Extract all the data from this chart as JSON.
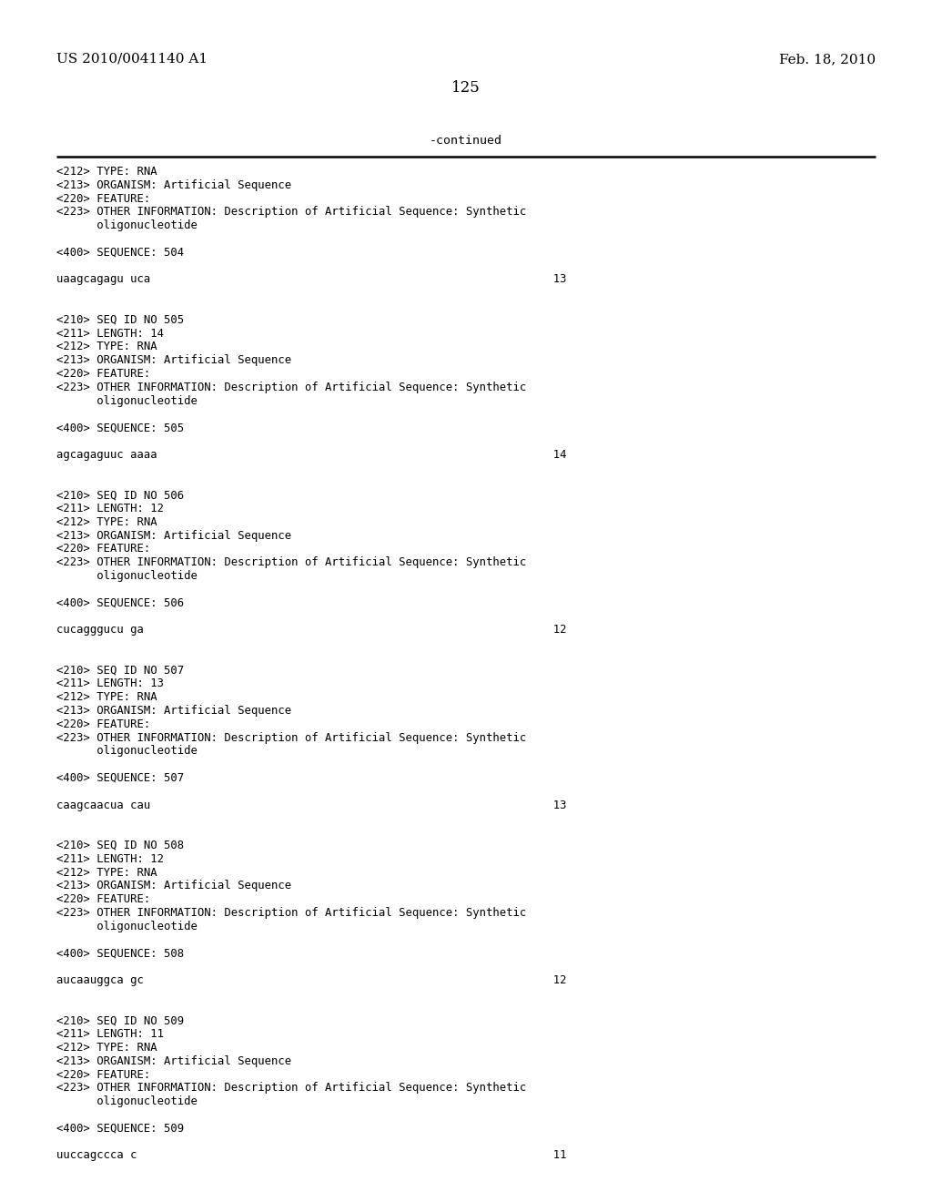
{
  "bg_color": "#ffffff",
  "header_left": "US 2010/0041140 A1",
  "header_right": "Feb. 18, 2010",
  "page_number": "125",
  "continued_label": "-continued",
  "lines": [
    "<212> TYPE: RNA",
    "<213> ORGANISM: Artificial Sequence",
    "<220> FEATURE:",
    "<223> OTHER INFORMATION: Description of Artificial Sequence: Synthetic",
    "      oligonucleotide",
    "",
    "<400> SEQUENCE: 504",
    "",
    "uaagcagagu uca                                                            13",
    "",
    "",
    "<210> SEQ ID NO 505",
    "<211> LENGTH: 14",
    "<212> TYPE: RNA",
    "<213> ORGANISM: Artificial Sequence",
    "<220> FEATURE:",
    "<223> OTHER INFORMATION: Description of Artificial Sequence: Synthetic",
    "      oligonucleotide",
    "",
    "<400> SEQUENCE: 505",
    "",
    "agcagaguuc aaaa                                                           14",
    "",
    "",
    "<210> SEQ ID NO 506",
    "<211> LENGTH: 12",
    "<212> TYPE: RNA",
    "<213> ORGANISM: Artificial Sequence",
    "<220> FEATURE:",
    "<223> OTHER INFORMATION: Description of Artificial Sequence: Synthetic",
    "      oligonucleotide",
    "",
    "<400> SEQUENCE: 506",
    "",
    "cucagggucu ga                                                             12",
    "",
    "",
    "<210> SEQ ID NO 507",
    "<211> LENGTH: 13",
    "<212> TYPE: RNA",
    "<213> ORGANISM: Artificial Sequence",
    "<220> FEATURE:",
    "<223> OTHER INFORMATION: Description of Artificial Sequence: Synthetic",
    "      oligonucleotide",
    "",
    "<400> SEQUENCE: 507",
    "",
    "caagcaacua cau                                                            13",
    "",
    "",
    "<210> SEQ ID NO 508",
    "<211> LENGTH: 12",
    "<212> TYPE: RNA",
    "<213> ORGANISM: Artificial Sequence",
    "<220> FEATURE:",
    "<223> OTHER INFORMATION: Description of Artificial Sequence: Synthetic",
    "      oligonucleotide",
    "",
    "<400> SEQUENCE: 508",
    "",
    "aucaauggca gc                                                             12",
    "",
    "",
    "<210> SEQ ID NO 509",
    "<211> LENGTH: 11",
    "<212> TYPE: RNA",
    "<213> ORGANISM: Artificial Sequence",
    "<220> FEATURE:",
    "<223> OTHER INFORMATION: Description of Artificial Sequence: Synthetic",
    "      oligonucleotide",
    "",
    "<400> SEQUENCE: 509",
    "",
    "uuccagccca c                                                              11"
  ]
}
